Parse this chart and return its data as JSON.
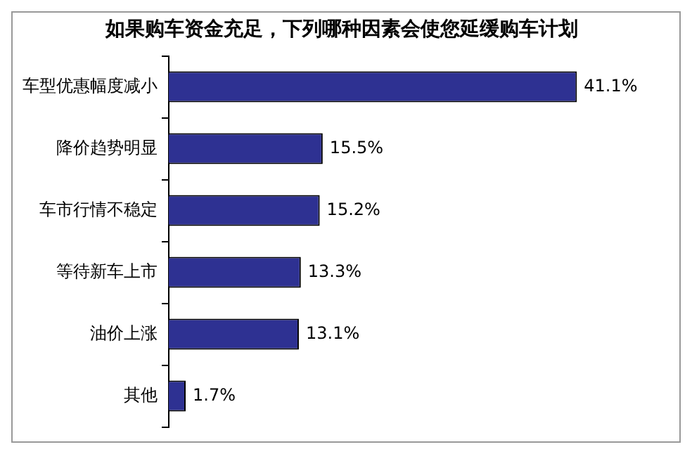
{
  "chart_data": {
    "type": "bar",
    "orientation": "horizontal",
    "title": "如果购车资金充足，下列哪种因素会使您延缓购车计划",
    "categories": [
      "车型优惠幅度减小",
      "降价趋势明显",
      "车市行情不稳定",
      "等待新车上市",
      "油价上涨",
      "其他"
    ],
    "series": [
      {
        "color": "#2e3192",
        "values": [
          41.1,
          15.5,
          15.2,
          13.3,
          13.1,
          1.7
        ],
        "value_labels": [
          "41.1%",
          "15.5%",
          "15.2%",
          "13.3%",
          "13.1%",
          "1.7%"
        ]
      }
    ],
    "grid": false,
    "legend": false,
    "tick_labels": "y"
  }
}
